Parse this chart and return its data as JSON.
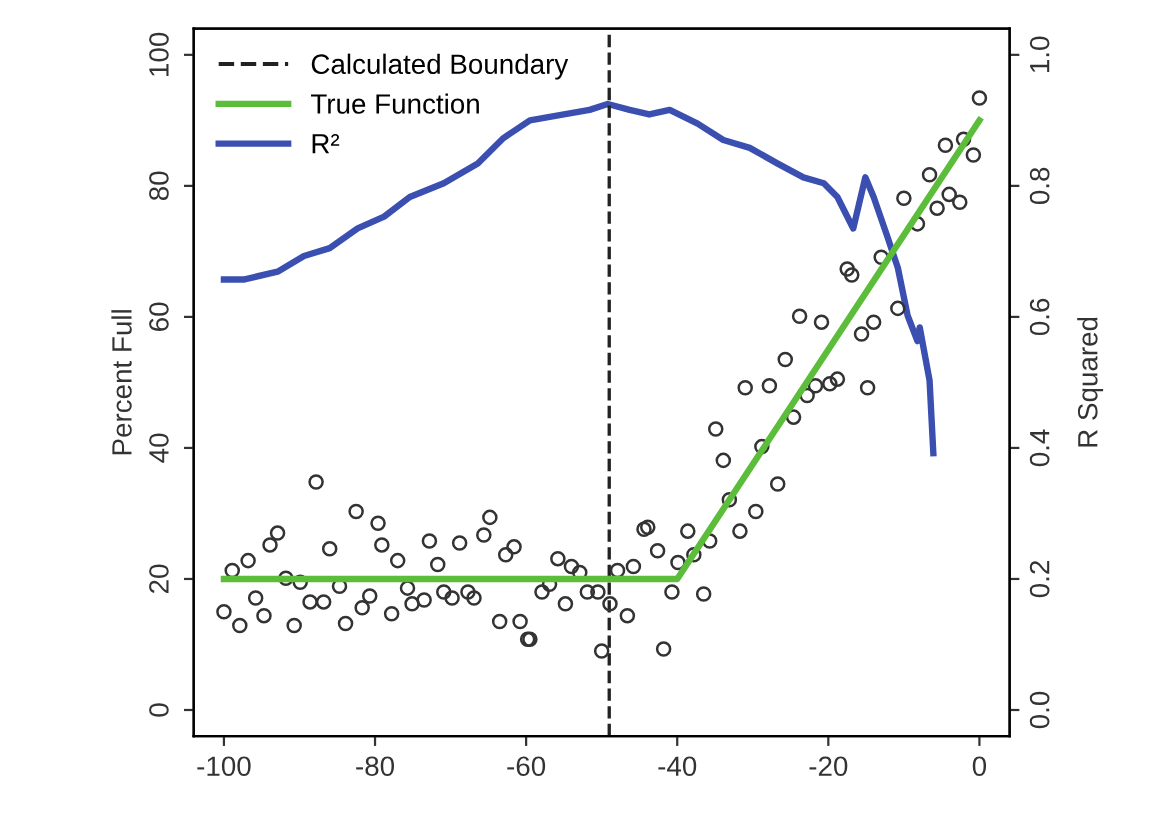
{
  "chart_data": {
    "type": "scatter",
    "ylabel": "Percent Full",
    "y2label": "R Squared",
    "xlim": [
      -104,
      4
    ],
    "xticks": [
      -100,
      -80,
      -60,
      -40,
      -20,
      0
    ],
    "ylim": [
      -4,
      104
    ],
    "yticks": [
      0,
      20,
      40,
      60,
      80,
      100
    ],
    "y2lim": [
      -0.04,
      1.04
    ],
    "y2ticks": [
      {
        "value": 0,
        "label": "0.0"
      },
      0.2,
      0.4,
      0.6,
      0.8,
      {
        "value": 1,
        "label": "1.0"
      }
    ],
    "legend": "top left",
    "grid": false,
    "ref_lines": [
      {
        "axis": "x",
        "value": -49,
        "label": "Calculated Boundary",
        "color": "#222222",
        "line_style": "dashed"
      }
    ],
    "series": [
      {
        "color": "#333333",
        "marker": "circle",
        "x": [
          -100,
          -98.9,
          -97.9,
          -96.8,
          -95.8,
          -94.7,
          -93.9,
          -92.9,
          -91.8,
          -89.9,
          -90.7,
          -88.6,
          -87.8,
          -86.8,
          -86,
          -84.7,
          -83.9,
          -82.5,
          -81.7,
          -80.7,
          -79.6,
          -79.1,
          -77.8,
          -77,
          -75.7,
          -75.1,
          -73.5,
          -72.8,
          -71.7,
          -70.9,
          -69.8,
          -68.8,
          -67.7,
          -66.9,
          -65.6,
          -64.8,
          -63.5,
          -62.7,
          -61.6,
          -60.8,
          -59.8,
          -59.5,
          -57.9,
          -56.9,
          -55.8,
          -54.8,
          -54,
          -52.9,
          -51.9,
          -50.5,
          -50,
          -48.9,
          -47.9,
          -46.6,
          -45.8,
          -44.4,
          -43.9,
          -42.6,
          -41.8,
          -40.7,
          -39.9,
          -38.6,
          -36.5,
          -37.8,
          -35.7,
          -34.9,
          -33.9,
          -33.1,
          -31.7,
          -31,
          -29.6,
          -28.8,
          -27.8,
          -26.7,
          -25.7,
          -24.6,
          -23.8,
          -22.8,
          -21.7,
          -20.9,
          -19.8,
          -18.8,
          -15.6,
          -14.8,
          -14,
          -10.8,
          -17.5,
          -16.9,
          -13,
          -10,
          -8.2,
          -6.6,
          -5.6,
          -4.5,
          -4,
          -2.6,
          -2.1,
          -0.8,
          0
        ],
        "values": [
          15,
          21.3,
          12.9,
          22.8,
          17.1,
          14.4,
          25.2,
          27,
          20.1,
          19.5,
          12.9,
          16.5,
          34.8,
          16.5,
          24.6,
          18.9,
          13.2,
          30.3,
          15.6,
          17.4,
          28.5,
          25.2,
          14.7,
          22.8,
          18.6,
          16.2,
          16.8,
          25.8,
          22.2,
          18,
          17.1,
          25.5,
          18,
          17.1,
          26.7,
          29.4,
          13.5,
          23.7,
          24.9,
          13.5,
          10.8,
          10.8,
          18,
          19.2,
          23.1,
          16.2,
          21.9,
          21,
          18,
          18,
          9,
          16.2,
          21.3,
          14.4,
          21.9,
          27.6,
          27.9,
          24.3,
          9.3,
          18,
          22.5,
          27.3,
          17.7,
          23.7,
          25.8,
          42.9,
          38.1,
          32.1,
          27.3,
          49.2,
          30.3,
          40.2,
          49.5,
          34.5,
          53.5,
          44.7,
          60.1,
          48,
          49.5,
          59.2,
          49.8,
          50.5,
          57.4,
          49.2,
          59.2,
          61.3,
          67.3,
          66.4,
          69.1,
          78.1,
          74.2,
          81.7,
          76.6,
          86.2,
          78.7,
          77.5,
          87.1,
          84.7,
          93.4
        ]
      },
      {
        "type": "line",
        "name": "True Function",
        "color": "#5bbd3a",
        "x": [
          -100,
          -40,
          0
        ],
        "values": [
          20,
          20,
          90
        ]
      },
      {
        "type": "line",
        "name": "R²",
        "color": "#3a4fb0",
        "axis": "y2",
        "x": [
          -100,
          -97.4,
          -92.9,
          -89.4,
          -86,
          -82.3,
          -78.8,
          -75.4,
          -70.9,
          -66.4,
          -63,
          -59.5,
          -55,
          -51.6,
          -49.2,
          -46.3,
          -43.7,
          -41,
          -37.3,
          -33.9,
          -30.4,
          -26.7,
          -23.3,
          -20.6,
          -18.8,
          -16.7,
          -15.1,
          -14,
          -12.2,
          -10.8,
          -9.5,
          -9.2,
          -8.2,
          -7.9,
          -6.6,
          -6.1
        ],
        "values": [
          0.657,
          0.657,
          0.669,
          0.693,
          0.705,
          0.735,
          0.753,
          0.783,
          0.804,
          0.834,
          0.873,
          0.9,
          0.909,
          0.916,
          0.925,
          0.916,
          0.909,
          0.916,
          0.895,
          0.87,
          0.858,
          0.834,
          0.813,
          0.804,
          0.783,
          0.735,
          0.813,
          0.783,
          0.723,
          0.675,
          0.602,
          0.593,
          0.563,
          0.584,
          0.503,
          0.392
        ]
      }
    ]
  }
}
